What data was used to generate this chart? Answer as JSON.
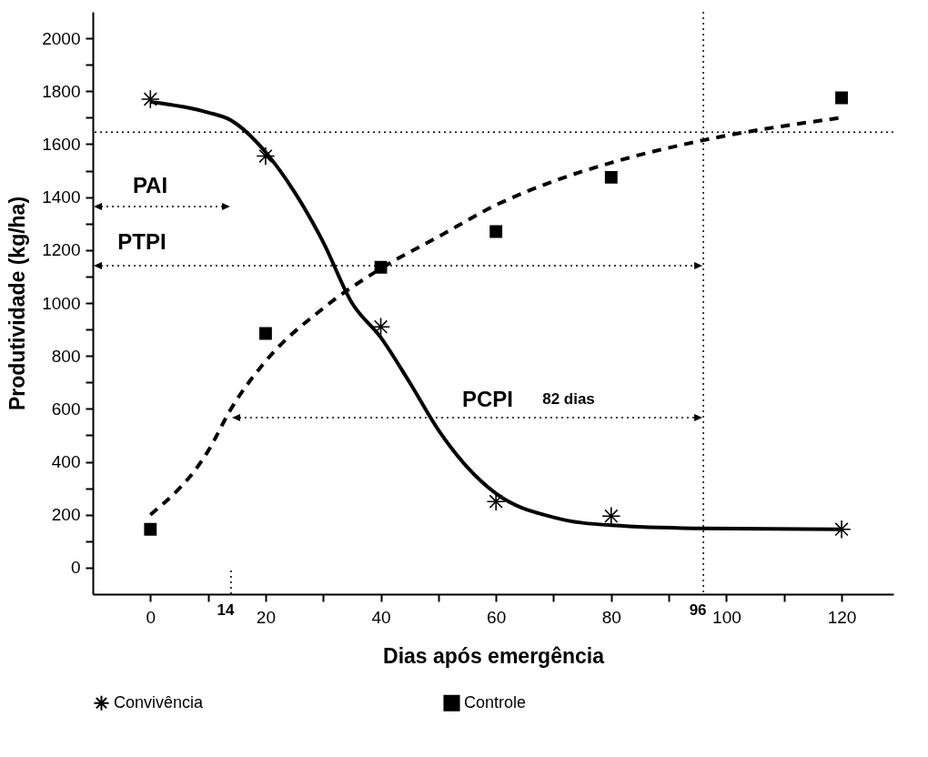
{
  "chart_data": {
    "type": "scatter",
    "xlabel": "Dias após emergência",
    "ylabel": "Produtividade (kg/ha)",
    "xlim": [
      -10,
      129
    ],
    "ylim": [
      -100,
      2100
    ],
    "xticks": [
      0,
      {
        "value": 10,
        "label": null
      },
      20,
      {
        "value": 30,
        "label": null
      },
      40,
      {
        "value": 50,
        "label": null
      },
      60,
      {
        "value": 70,
        "label": null
      },
      80,
      {
        "value": 90,
        "label": null
      },
      100,
      {
        "value": 110,
        "label": null
      },
      120
    ],
    "yticks": [
      0,
      {
        "value": 100,
        "label": null
      },
      200,
      {
        "value": 300,
        "label": null
      },
      400,
      {
        "value": 500,
        "label": null
      },
      600,
      {
        "value": 700,
        "label": null
      },
      800,
      {
        "value": 900,
        "label": null
      },
      1000,
      {
        "value": 1100,
        "label": null
      },
      1200,
      {
        "value": 1300,
        "label": null
      },
      1400,
      {
        "value": 1500,
        "label": null
      },
      1600,
      {
        "value": 1700,
        "label": null
      },
      1800,
      {
        "value": 1900,
        "label": null
      },
      2000
    ],
    "legend": "bottom",
    "series": [
      {
        "type": "line",
        "color": "#000000",
        "line_style": "solid",
        "x": [
          0,
          10,
          14,
          20,
          25,
          30,
          35,
          40,
          45,
          50,
          55,
          60,
          70,
          80,
          96,
          120
        ],
        "values": [
          1760,
          1720,
          1690,
          1570,
          1420,
          1230,
          1000,
          870,
          700,
          520,
          380,
          280,
          190,
          160,
          148,
          145
        ]
      },
      {
        "type": "line",
        "color": "#000000",
        "line_style": "dashed",
        "x": [
          0,
          10,
          14,
          20,
          30,
          40,
          50,
          60,
          70,
          80,
          96,
          120
        ],
        "values": [
          200,
          440,
          600,
          780,
          980,
          1130,
          1250,
          1370,
          1460,
          1530,
          1615,
          1700
        ]
      },
      {
        "name": "Convivência",
        "color": "#000000",
        "marker": "cross",
        "x": [
          0,
          20,
          40,
          60,
          80,
          120
        ],
        "values": [
          1770,
          1555,
          910,
          250,
          195,
          145
        ]
      },
      {
        "name": "Controle",
        "color": "#000000",
        "marker": "square",
        "x": [
          0,
          20,
          40,
          60,
          80,
          120
        ],
        "values": [
          145,
          885,
          1135,
          1270,
          1475,
          1775
        ]
      }
    ],
    "ref_lines": [
      {
        "axis": "x",
        "value": 14,
        "label": "14",
        "line_style": "dotted"
      },
      {
        "axis": "x",
        "value": 96,
        "label": "96",
        "line_style": "dotted"
      },
      {
        "axis": "y",
        "value": 1645,
        "label": null,
        "line_style": "dotted"
      }
    ],
    "annotations": [
      "PAI",
      "PTPI",
      "PCPI",
      "82 dias"
    ]
  }
}
